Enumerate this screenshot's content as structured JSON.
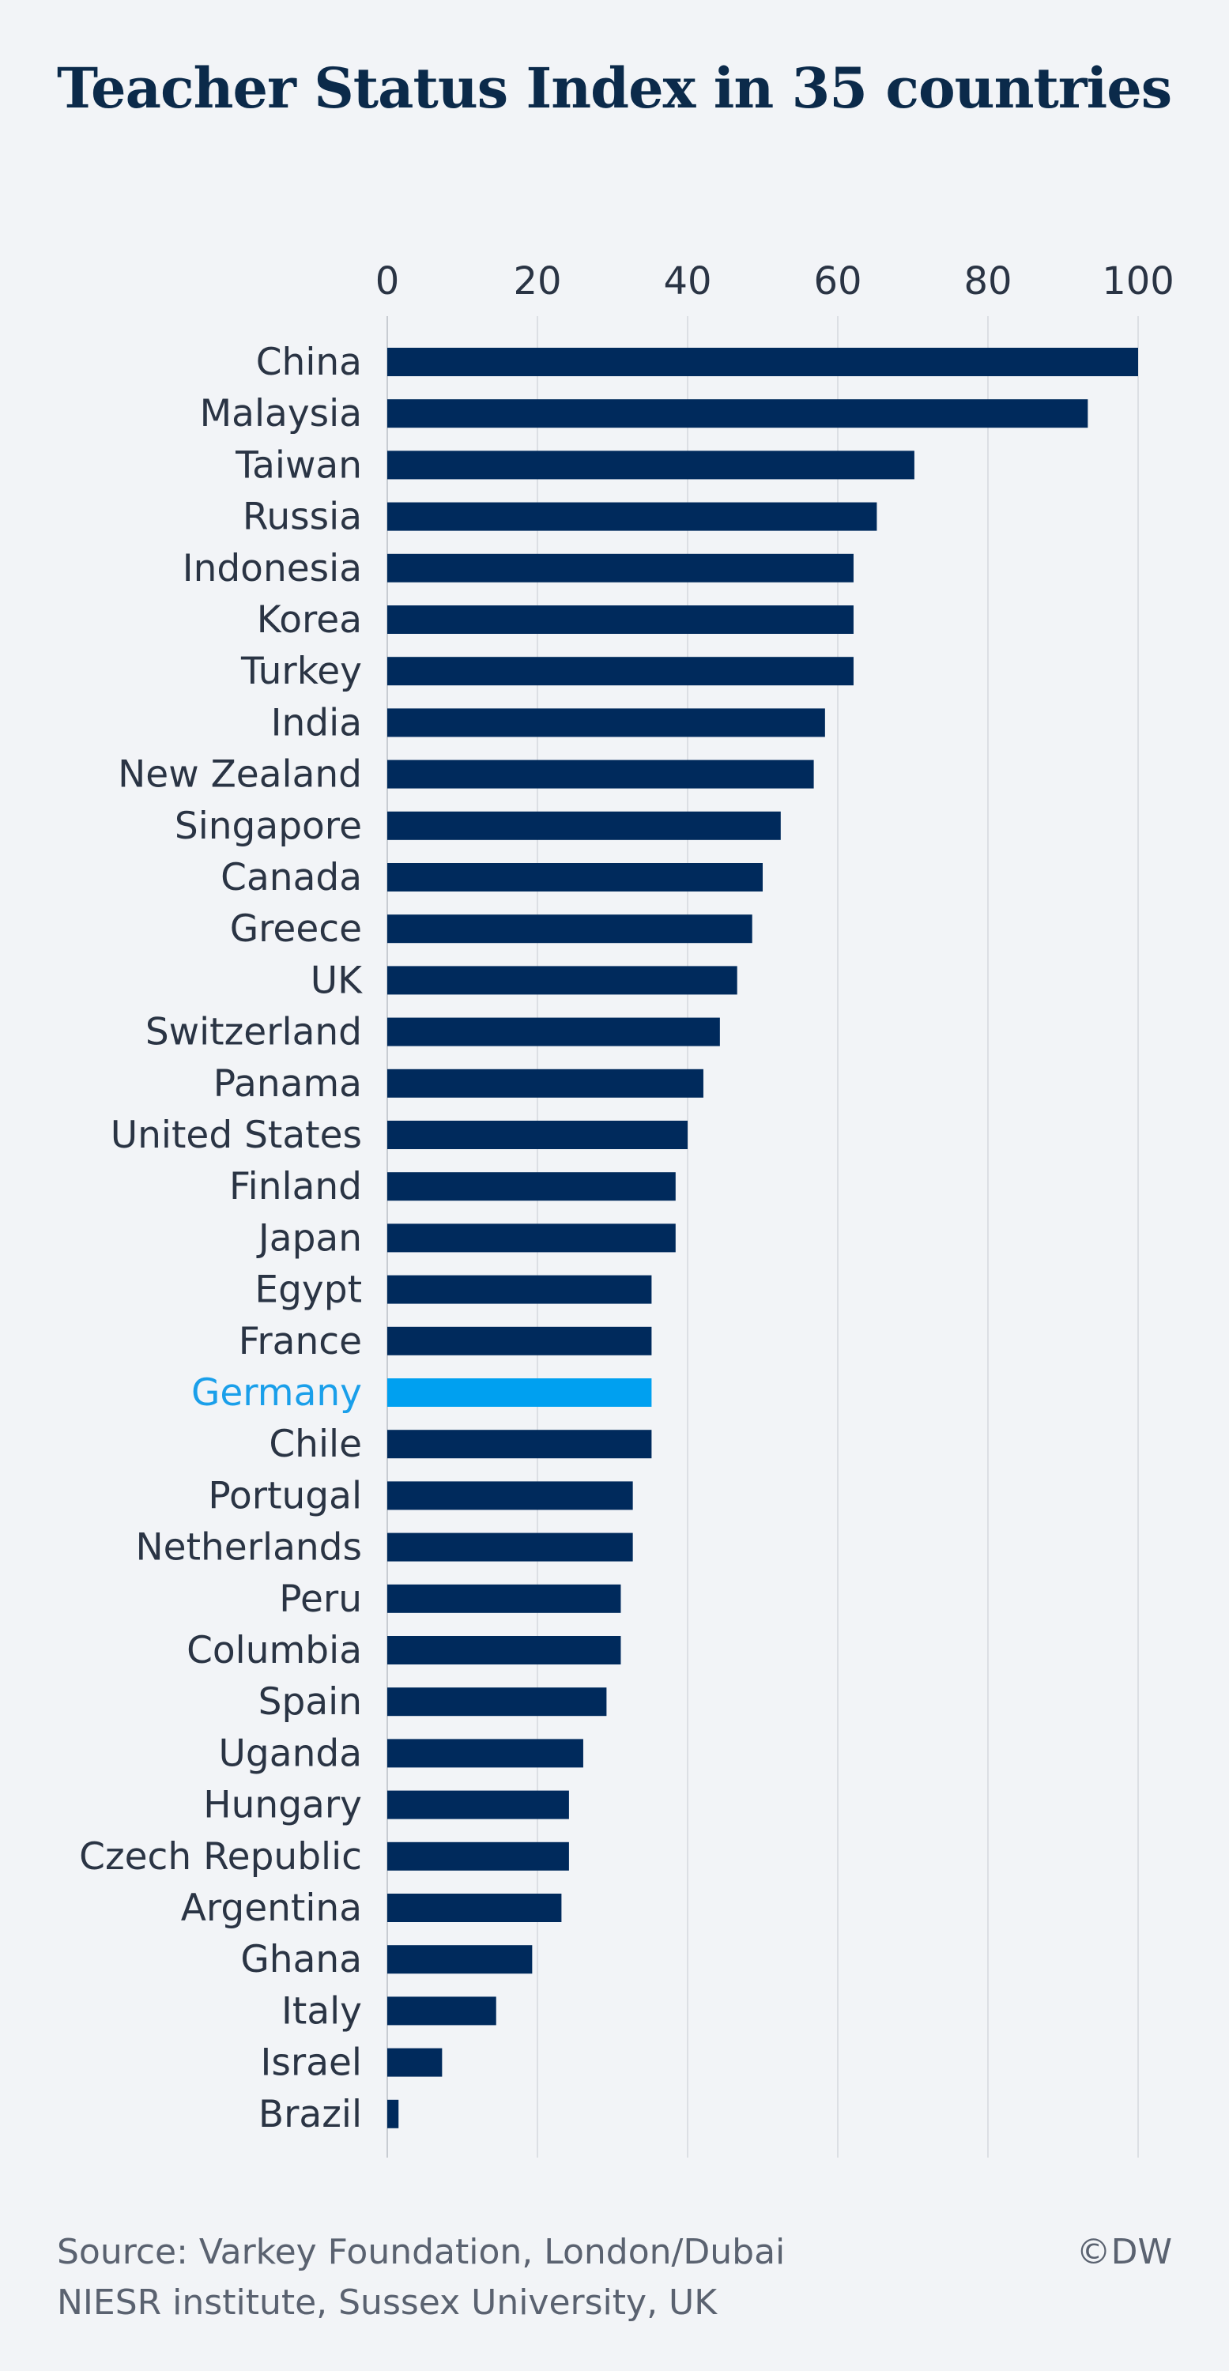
{
  "chart_data": {
    "type": "bar",
    "orientation": "horizontal",
    "title": "Teacher Status Index in 35 countries",
    "categories": [
      "China",
      "Malaysia",
      "Taiwan",
      "Russia",
      "Indonesia",
      "Korea",
      "Turkey",
      "India",
      "New Zealand",
      "Singapore",
      "Canada",
      "Greece",
      "UK",
      "Switzerland",
      "Panama",
      "United States",
      "Finland",
      "Japan",
      "Egypt",
      "France",
      "Germany",
      "Chile",
      "Portugal",
      "Netherlands",
      "Peru",
      "Columbia",
      "Spain",
      "Uganda",
      "Hungary",
      "Czech Republic",
      "Argentina",
      "Ghana",
      "Italy",
      "Israel",
      "Brazil"
    ],
    "values": [
      100,
      93.3,
      70.2,
      65.2,
      62.1,
      62.1,
      62.1,
      58.3,
      56.8,
      52.4,
      50.0,
      48.6,
      46.6,
      44.3,
      42.1,
      40.0,
      38.4,
      38.4,
      35.2,
      35.2,
      35.2,
      35.2,
      32.7,
      32.7,
      31.1,
      31.1,
      29.2,
      26.1,
      24.2,
      24.2,
      23.2,
      19.3,
      14.5,
      7.3,
      1.5
    ],
    "highlight": "Germany",
    "xticks": [
      "0",
      "20",
      "40",
      "60",
      "80",
      "100"
    ],
    "xlim": [
      0,
      100
    ],
    "grid": true,
    "colors": {
      "bar": "#002a5c",
      "highlight": "#00a0f0",
      "grid": "#dcdfe4"
    }
  },
  "footer": {
    "source_line1": "Source: Varkey Foundation, London/Dubai",
    "source_line2": "NIESR institute, Sussex University, UK",
    "credit": "©DW"
  }
}
